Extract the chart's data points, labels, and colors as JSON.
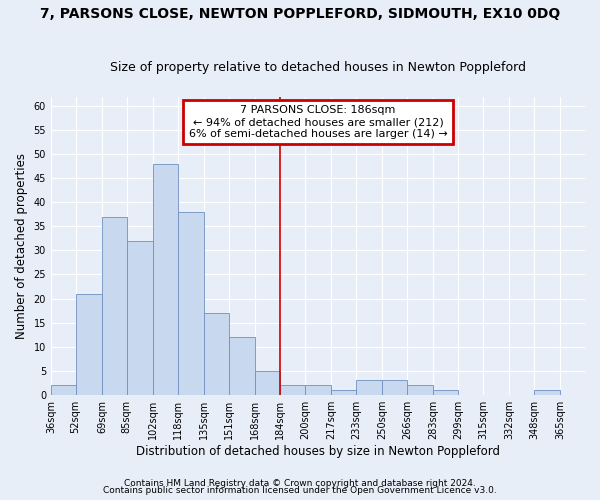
{
  "title": "7, PARSONS CLOSE, NEWTON POPPLEFORD, SIDMOUTH, EX10 0DQ",
  "subtitle": "Size of property relative to detached houses in Newton Poppleford",
  "xlabel": "Distribution of detached houses by size in Newton Poppleford",
  "ylabel": "Number of detached properties",
  "bar_values": [
    2,
    21,
    37,
    32,
    48,
    38,
    17,
    12,
    5,
    2,
    2,
    1,
    3,
    3,
    2,
    1,
    0,
    0,
    0,
    1,
    0
  ],
  "bin_edges": [
    36,
    52,
    69,
    85,
    102,
    118,
    135,
    151,
    168,
    184,
    200,
    217,
    233,
    250,
    266,
    283,
    299,
    315,
    332,
    348,
    365,
    381
  ],
  "tick_labels": [
    "36sqm",
    "52sqm",
    "69sqm",
    "85sqm",
    "102sqm",
    "118sqm",
    "135sqm",
    "151sqm",
    "168sqm",
    "184sqm",
    "200sqm",
    "217sqm",
    "233sqm",
    "250sqm",
    "266sqm",
    "283sqm",
    "299sqm",
    "315sqm",
    "332sqm",
    "348sqm",
    "365sqm"
  ],
  "bar_color": "#c8d8ee",
  "bar_edge_color": "#7090c0",
  "vline_x": 184,
  "vline_color": "#cc0000",
  "annotation_box_text": "7 PARSONS CLOSE: 186sqm\n← 94% of detached houses are smaller (212)\n6% of semi-detached houses are larger (14) →",
  "ylim": [
    0,
    62
  ],
  "yticks": [
    0,
    5,
    10,
    15,
    20,
    25,
    30,
    35,
    40,
    45,
    50,
    55,
    60
  ],
  "footer_line1": "Contains HM Land Registry data © Crown copyright and database right 2024.",
  "footer_line2": "Contains public sector information licensed under the Open Government Licence v3.0.",
  "background_color": "#e8eef8",
  "grid_color": "#ffffff",
  "title_fontsize": 10,
  "subtitle_fontsize": 9,
  "axis_label_fontsize": 8.5,
  "tick_fontsize": 7,
  "footer_fontsize": 6.5,
  "annot_fontsize": 8
}
